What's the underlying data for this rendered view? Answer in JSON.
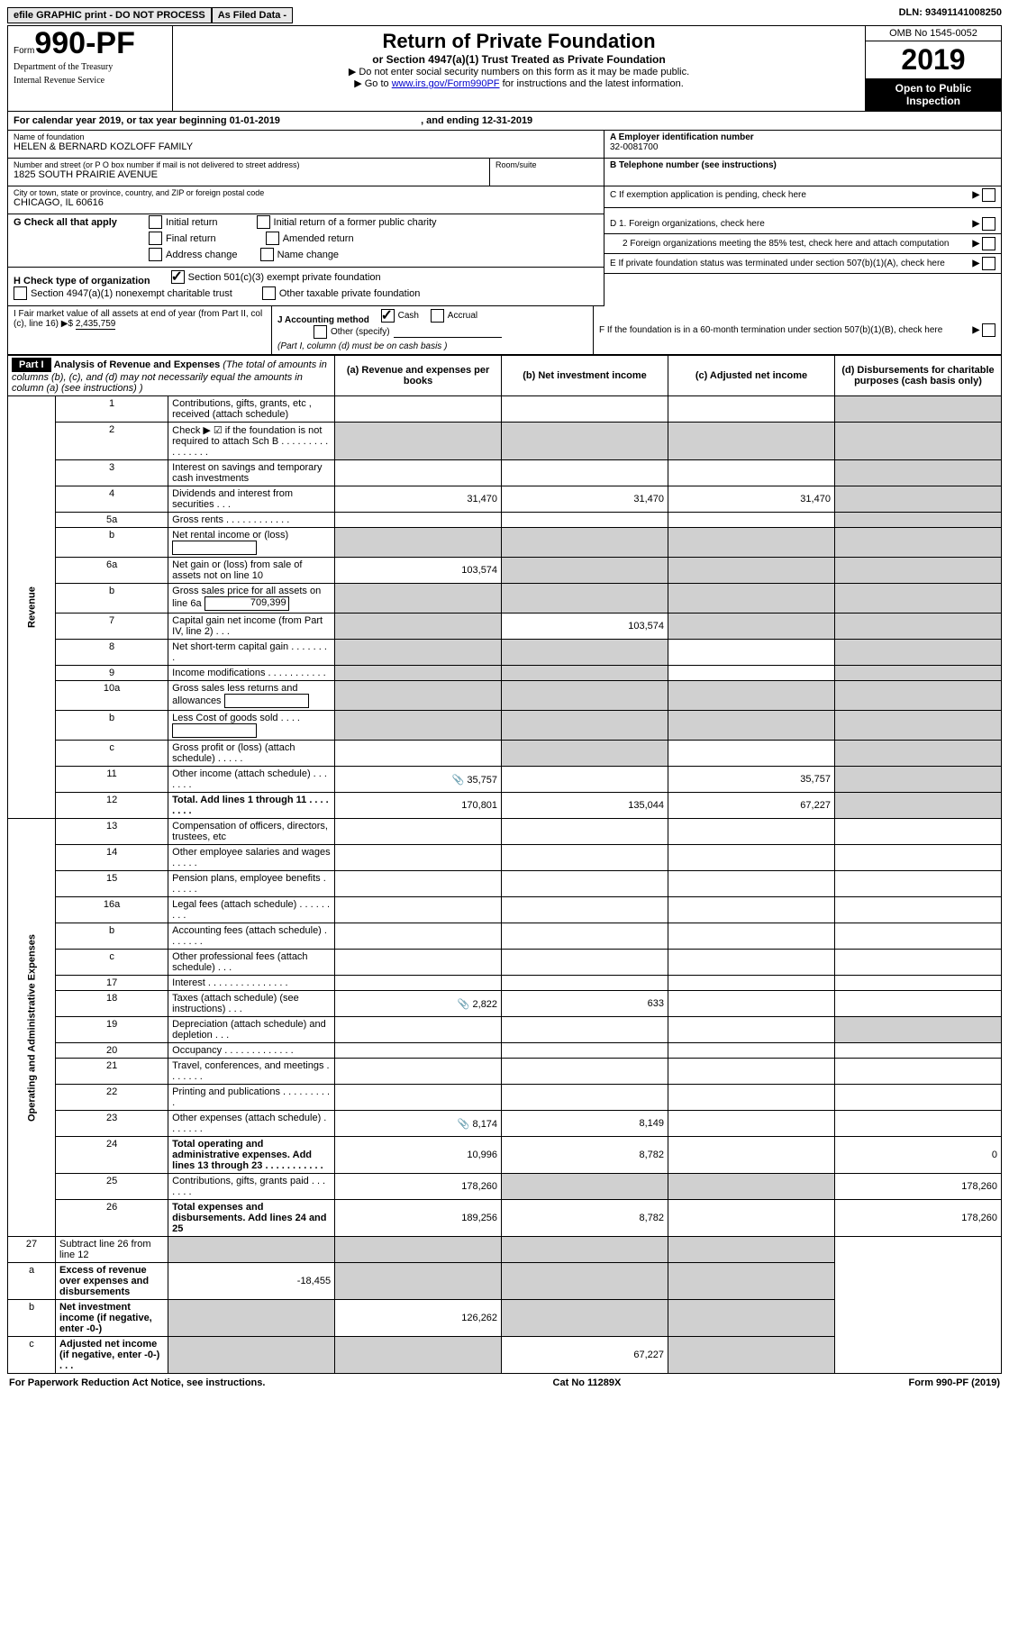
{
  "top": {
    "efile": "efile GRAPHIC print - DO NOT PROCESS",
    "asfiled": "As Filed Data -",
    "dln_label": "DLN:",
    "dln": "93491141008250"
  },
  "header": {
    "form_word": "Form",
    "form_num": "990-PF",
    "dept": "Department of the Treasury",
    "irs": "Internal Revenue Service",
    "title": "Return of Private Foundation",
    "subtitle": "or Section 4947(a)(1) Trust Treated as Private Foundation",
    "instr1": "▶ Do not enter social security numbers on this form as it may be made public.",
    "instr2_pre": "▶ Go to ",
    "instr2_link": "www.irs.gov/Form990PF",
    "instr2_post": " for instructions and the latest information.",
    "omb": "OMB No  1545-0052",
    "year": "2019",
    "open": "Open to Public Inspection"
  },
  "cal": {
    "text_pre": "For calendar year 2019, or tax year beginning ",
    "begin": "01-01-2019",
    "mid": " , and ending ",
    "end": "12-31-2019"
  },
  "name_block": {
    "name_lbl": "Name of foundation",
    "name": "HELEN & BERNARD KOZLOFF FAMILY",
    "addr_lbl": "Number and street (or P O  box number if mail is not delivered to street address)",
    "room_lbl": "Room/suite",
    "addr": "1825 SOUTH PRAIRIE AVENUE",
    "city_lbl": "City or town, state or province, country, and ZIP or foreign postal code",
    "city": "CHICAGO, IL  60616"
  },
  "right_block": {
    "a_lbl": "A Employer identification number",
    "a_val": "32-0081700",
    "b_lbl": "B Telephone number (see instructions)",
    "c_lbl": "C  If exemption application is pending, check here",
    "d1": "D 1. Foreign organizations, check here",
    "d2": "2  Foreign organizations meeting the 85% test, check here and attach computation",
    "e": "E  If private foundation status was terminated under section 507(b)(1)(A), check here",
    "f": "F  If the foundation is in a 60-month termination under section 507(b)(1)(B), check here"
  },
  "g": {
    "lbl": "G Check all that apply",
    "opts": [
      "Initial return",
      "Initial return of a former public charity",
      "Final return",
      "Amended return",
      "Address change",
      "Name change"
    ]
  },
  "h": {
    "lbl": "H Check type of organization",
    "o1": "Section 501(c)(3) exempt private foundation",
    "o2": "Section 4947(a)(1) nonexempt charitable trust",
    "o3": "Other taxable private foundation"
  },
  "i": {
    "lbl": "I Fair market value of all assets at end of year (from Part II, col  (c), line 16)  ▶$ ",
    "val": "2,435,759"
  },
  "j": {
    "lbl": "J Accounting method",
    "cash": "Cash",
    "accrual": "Accrual",
    "other": "Other (specify)",
    "note": "(Part I, column (d) must be on cash basis )"
  },
  "part1": {
    "tag": "Part I",
    "head": "Analysis of Revenue and Expenses",
    "head_note": "(The total of amounts in columns (b), (c), and (d) may not necessarily equal the amounts in column (a) (see instructions) )",
    "cols": {
      "a": "(a)  Revenue and expenses per books",
      "b": "(b)  Net investment income",
      "c": "(c)  Adjusted net income",
      "d": "(d)  Disbursements for charitable purposes (cash basis only)"
    },
    "rev_label": "Revenue",
    "ops_label": "Operating and Administrative Expenses",
    "rows": [
      {
        "n": "1",
        "d": "",
        "a": "",
        "b": "",
        "c": "",
        "shade_d": true
      },
      {
        "n": "2",
        "d": "",
        "a": "",
        "b": "",
        "c": "",
        "shade_abcd": true
      },
      {
        "n": "3",
        "d": "",
        "a": "",
        "b": "",
        "c": "",
        "shade_d": true
      },
      {
        "n": "4",
        "d": "",
        "a": "31,470",
        "b": "31,470",
        "c": "31,470",
        "shade_d": true
      },
      {
        "n": "5a",
        "d": "",
        "a": "",
        "b": "",
        "c": "",
        "shade_d": true
      },
      {
        "n": "b",
        "d": "",
        "a": "",
        "b": "",
        "c": "",
        "box_a": true,
        "shade_abcd": true
      },
      {
        "n": "6a",
        "d": "",
        "a": "103,574",
        "b": "",
        "c": "",
        "shade_bcd": true
      },
      {
        "n": "b",
        "d": "",
        "a": "",
        "b": "",
        "c": "",
        "box_a": true,
        "box_val": "709,399",
        "shade_abcd": true
      },
      {
        "n": "7",
        "d": "",
        "a": "",
        "b": "103,574",
        "c": "",
        "shade_acd": true
      },
      {
        "n": "8",
        "d": "",
        "a": "",
        "b": "",
        "c": "",
        "shade_abd": true
      },
      {
        "n": "9",
        "d": "",
        "a": "",
        "b": "",
        "c": "",
        "shade_abd": true
      },
      {
        "n": "10a",
        "d": "",
        "a": "",
        "b": "",
        "c": "",
        "box_a": true,
        "shade_abcd": true
      },
      {
        "n": "b",
        "d": "",
        "a": "",
        "b": "",
        "c": "",
        "box_a": true,
        "shade_abcd": true
      },
      {
        "n": "c",
        "d": "",
        "a": "",
        "b": "",
        "c": "",
        "shade_bd": true
      },
      {
        "n": "11",
        "d": "",
        "a": "35,757",
        "b": "",
        "c": "35,757",
        "icon_a": true,
        "shade_d": true
      },
      {
        "n": "12",
        "d": "",
        "a": "170,801",
        "b": "135,044",
        "c": "67,227",
        "bold": true,
        "shade_d": true
      }
    ],
    "rows_ops": [
      {
        "n": "13",
        "d": "",
        "a": "",
        "b": "",
        "c": ""
      },
      {
        "n": "14",
        "d": "",
        "a": "",
        "b": "",
        "c": ""
      },
      {
        "n": "15",
        "d": "",
        "a": "",
        "b": "",
        "c": ""
      },
      {
        "n": "16a",
        "d": "",
        "a": "",
        "b": "",
        "c": ""
      },
      {
        "n": "b",
        "d": "",
        "a": "",
        "b": "",
        "c": ""
      },
      {
        "n": "c",
        "d": "",
        "a": "",
        "b": "",
        "c": ""
      },
      {
        "n": "17",
        "d": "",
        "a": "",
        "b": "",
        "c": ""
      },
      {
        "n": "18",
        "d": "",
        "a": "2,822",
        "b": "633",
        "c": "",
        "icon_a": true
      },
      {
        "n": "19",
        "d": "",
        "a": "",
        "b": "",
        "c": "",
        "shade_d": true
      },
      {
        "n": "20",
        "d": "",
        "a": "",
        "b": "",
        "c": ""
      },
      {
        "n": "21",
        "d": "",
        "a": "",
        "b": "",
        "c": ""
      },
      {
        "n": "22",
        "d": "",
        "a": "",
        "b": "",
        "c": ""
      },
      {
        "n": "23",
        "d": "",
        "a": "8,174",
        "b": "8,149",
        "c": "",
        "icon_a": true
      },
      {
        "n": "24",
        "d": "0",
        "a": "10,996",
        "b": "8,782",
        "c": "",
        "bold": true
      },
      {
        "n": "25",
        "d": "178,260",
        "a": "178,260",
        "b": "",
        "c": "",
        "shade_bc": true
      },
      {
        "n": "26",
        "d": "178,260",
        "a": "189,256",
        "b": "8,782",
        "c": "",
        "bold": true
      }
    ],
    "rows_net": [
      {
        "n": "27",
        "d": "",
        "a": "",
        "b": "",
        "c": "",
        "shade_abcd": true
      },
      {
        "n": "a",
        "d": "",
        "a": "-18,455",
        "b": "",
        "c": "",
        "bold": true,
        "shade_bcd": true
      },
      {
        "n": "b",
        "d": "",
        "a": "",
        "b": "126,262",
        "c": "",
        "bold": true,
        "shade_acd": true
      },
      {
        "n": "c",
        "d": "",
        "a": "",
        "b": "",
        "c": "67,227",
        "bold": true,
        "shade_abd": true
      }
    ]
  },
  "footer": {
    "left": "For Paperwork Reduction Act Notice, see instructions.",
    "mid": "Cat  No  11289X",
    "right": "Form 990-PF (2019)"
  }
}
